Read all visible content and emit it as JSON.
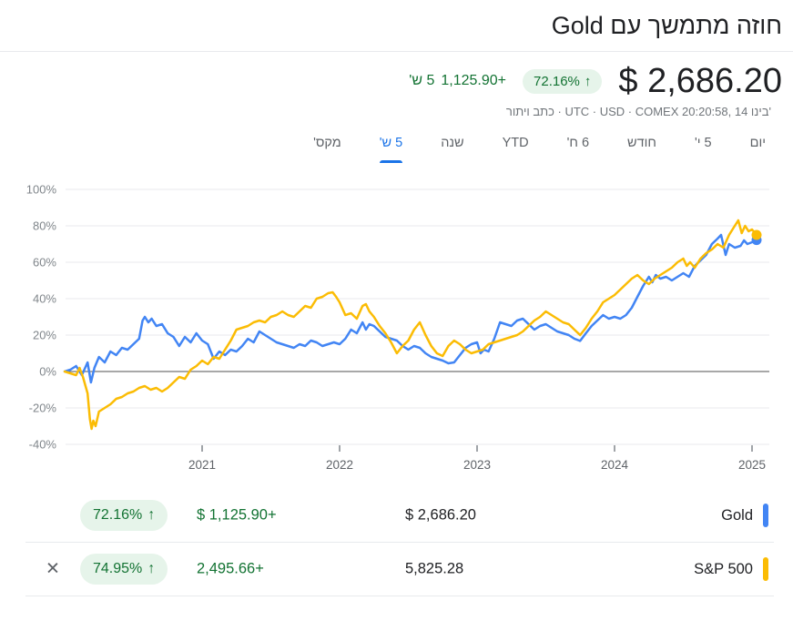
{
  "page": {
    "title": "חוזה מתמשך עם Gold"
  },
  "header": {
    "price": "$ 2,686.20",
    "badge": {
      "pct": "72.16%",
      "arrow": "↑"
    },
    "change": {
      "period": "5 ש'",
      "value": "1,125.90+"
    },
    "info_line": "כתב ויתור · UTC · USD · COMEX 20:20:58, 14 בינו'"
  },
  "tabs": {
    "items": [
      {
        "label": "יום",
        "active": false
      },
      {
        "label": "5 י'",
        "active": false
      },
      {
        "label": "חודש",
        "active": false
      },
      {
        "label": "6 ח'",
        "active": false
      },
      {
        "label": "YTD",
        "active": false
      },
      {
        "label": "שנה",
        "active": false
      },
      {
        "label": "5 ש'",
        "active": true
      },
      {
        "label": "מקס'",
        "active": false
      }
    ]
  },
  "chart_data": {
    "type": "line",
    "title": "Gold continuous contract vs S&P 500, 5 year % change",
    "x_unit": "months since Jan 2020",
    "ylim": [
      -40,
      100
    ],
    "grid": true,
    "y_axis": {
      "ticks": [
        {
          "label": "100%",
          "value": 100
        },
        {
          "label": "80%",
          "value": 80
        },
        {
          "label": "60%",
          "value": 60
        },
        {
          "label": "40%",
          "value": 40
        },
        {
          "label": "20%",
          "value": 20
        },
        {
          "label": "0%",
          "value": 0
        },
        {
          "label": "-20%",
          "value": -20
        },
        {
          "label": "-40%",
          "value": -40
        }
      ]
    },
    "x_axis": {
      "ticks": [
        {
          "label": "2021",
          "month": 12
        },
        {
          "label": "2022",
          "month": 24
        },
        {
          "label": "2023",
          "month": 36
        },
        {
          "label": "2024",
          "month": 48
        },
        {
          "label": "2025",
          "month": 60
        }
      ]
    },
    "series": [
      {
        "id": "gold",
        "name": "Gold",
        "color": "#4285f4",
        "end_value_pct": 72.16,
        "points": [
          [
            0,
            0
          ],
          [
            0.5,
            1
          ],
          [
            1,
            3
          ],
          [
            1.5,
            -2
          ],
          [
            2,
            5
          ],
          [
            2.3,
            -6
          ],
          [
            2.6,
            2
          ],
          [
            3,
            8
          ],
          [
            3.5,
            5
          ],
          [
            4,
            11
          ],
          [
            4.5,
            9
          ],
          [
            5,
            13
          ],
          [
            5.5,
            12
          ],
          [
            6,
            15
          ],
          [
            6.5,
            18
          ],
          [
            6.8,
            28
          ],
          [
            7,
            30
          ],
          [
            7.3,
            27
          ],
          [
            7.6,
            29
          ],
          [
            8,
            25
          ],
          [
            8.5,
            26
          ],
          [
            9,
            21
          ],
          [
            9.5,
            19
          ],
          [
            10,
            14
          ],
          [
            10.5,
            19
          ],
          [
            11,
            16
          ],
          [
            11.5,
            21
          ],
          [
            12,
            17
          ],
          [
            12.5,
            15
          ],
          [
            13,
            7
          ],
          [
            13.5,
            11
          ],
          [
            14,
            9
          ],
          [
            14.5,
            12
          ],
          [
            15,
            11
          ],
          [
            15.5,
            14
          ],
          [
            16,
            18
          ],
          [
            16.5,
            16
          ],
          [
            17,
            22
          ],
          [
            17.5,
            20
          ],
          [
            18,
            18
          ],
          [
            18.5,
            16
          ],
          [
            19,
            15
          ],
          [
            19.5,
            14
          ],
          [
            20,
            13
          ],
          [
            20.5,
            15
          ],
          [
            21,
            14
          ],
          [
            21.5,
            17
          ],
          [
            22,
            16
          ],
          [
            22.5,
            14
          ],
          [
            23,
            15
          ],
          [
            23.5,
            16
          ],
          [
            24,
            15
          ],
          [
            24.5,
            18
          ],
          [
            25,
            23
          ],
          [
            25.5,
            21
          ],
          [
            26,
            27
          ],
          [
            26.3,
            23
          ],
          [
            26.6,
            26
          ],
          [
            27,
            25
          ],
          [
            27.5,
            22
          ],
          [
            28,
            19
          ],
          [
            28.5,
            18
          ],
          [
            29,
            17
          ],
          [
            29.5,
            14
          ],
          [
            30,
            12
          ],
          [
            30.5,
            14
          ],
          [
            31,
            13
          ],
          [
            31.5,
            10
          ],
          [
            32,
            8
          ],
          [
            32.5,
            7
          ],
          [
            33,
            6
          ],
          [
            33.5,
            4.5
          ],
          [
            34,
            5
          ],
          [
            34.5,
            9
          ],
          [
            35,
            13
          ],
          [
            35.5,
            15
          ],
          [
            36,
            16
          ],
          [
            36.3,
            10
          ],
          [
            36.6,
            12
          ],
          [
            37,
            11
          ],
          [
            37.5,
            18
          ],
          [
            38,
            27
          ],
          [
            38.5,
            26
          ],
          [
            39,
            25
          ],
          [
            39.5,
            28
          ],
          [
            40,
            29
          ],
          [
            40.5,
            26
          ],
          [
            41,
            23
          ],
          [
            41.5,
            25
          ],
          [
            42,
            26
          ],
          [
            42.5,
            24
          ],
          [
            43,
            22
          ],
          [
            43.5,
            21
          ],
          [
            44,
            20
          ],
          [
            44.5,
            18
          ],
          [
            45,
            16.8
          ],
          [
            45.5,
            21
          ],
          [
            46,
            25
          ],
          [
            46.5,
            28
          ],
          [
            47,
            31
          ],
          [
            47.5,
            29
          ],
          [
            48,
            30
          ],
          [
            48.5,
            29
          ],
          [
            49,
            31
          ],
          [
            49.5,
            35
          ],
          [
            50,
            41
          ],
          [
            50.5,
            47
          ],
          [
            51,
            52
          ],
          [
            51.3,
            49
          ],
          [
            51.6,
            53
          ],
          [
            52,
            51
          ],
          [
            52.5,
            52
          ],
          [
            53,
            50
          ],
          [
            53.5,
            52
          ],
          [
            54,
            54
          ],
          [
            54.5,
            52
          ],
          [
            55,
            58
          ],
          [
            55.5,
            61
          ],
          [
            56,
            64
          ],
          [
            56.5,
            70
          ],
          [
            57,
            73
          ],
          [
            57.3,
            75
          ],
          [
            57.7,
            64
          ],
          [
            58,
            70
          ],
          [
            58.5,
            68
          ],
          [
            59,
            69
          ],
          [
            59.3,
            72
          ],
          [
            59.6,
            70
          ],
          [
            60,
            71
          ],
          [
            60.4,
            72.2
          ]
        ]
      },
      {
        "id": "sp500",
        "name": "S&P 500",
        "color": "#fbbc04",
        "end_value_pct": 74.95,
        "points": [
          [
            0,
            0
          ],
          [
            0.5,
            -1
          ],
          [
            1,
            -2
          ],
          [
            1.3,
            2
          ],
          [
            1.6,
            -3
          ],
          [
            2,
            -12
          ],
          [
            2.2,
            -26
          ],
          [
            2.35,
            -31.5
          ],
          [
            2.5,
            -27
          ],
          [
            2.7,
            -30
          ],
          [
            3,
            -22
          ],
          [
            3.5,
            -20
          ],
          [
            4,
            -18
          ],
          [
            4.5,
            -15
          ],
          [
            5,
            -14
          ],
          [
            5.5,
            -12
          ],
          [
            6,
            -11
          ],
          [
            6.5,
            -9
          ],
          [
            7,
            -8
          ],
          [
            7.5,
            -10
          ],
          [
            8,
            -9
          ],
          [
            8.5,
            -11
          ],
          [
            9,
            -9
          ],
          [
            9.5,
            -6
          ],
          [
            10,
            -3
          ],
          [
            10.5,
            -4
          ],
          [
            11,
            1
          ],
          [
            11.5,
            3
          ],
          [
            12,
            6
          ],
          [
            12.5,
            4
          ],
          [
            13,
            8
          ],
          [
            13.5,
            7
          ],
          [
            14,
            12
          ],
          [
            14.5,
            17
          ],
          [
            15,
            23
          ],
          [
            15.5,
            24
          ],
          [
            16,
            25
          ],
          [
            16.5,
            27
          ],
          [
            17,
            28
          ],
          [
            17.5,
            27
          ],
          [
            18,
            30
          ],
          [
            18.5,
            31
          ],
          [
            19,
            33
          ],
          [
            19.5,
            31
          ],
          [
            20,
            30
          ],
          [
            20.5,
            33
          ],
          [
            21,
            36
          ],
          [
            21.5,
            35
          ],
          [
            22,
            40
          ],
          [
            22.5,
            41
          ],
          [
            23,
            43
          ],
          [
            23.4,
            43.5
          ],
          [
            23.7,
            41
          ],
          [
            24,
            38
          ],
          [
            24.5,
            31
          ],
          [
            25,
            32
          ],
          [
            25.5,
            29
          ],
          [
            26,
            36
          ],
          [
            26.3,
            37
          ],
          [
            26.6,
            33
          ],
          [
            27,
            30
          ],
          [
            27.5,
            25
          ],
          [
            28,
            21
          ],
          [
            28.5,
            16
          ],
          [
            29,
            10
          ],
          [
            29.5,
            14
          ],
          [
            30,
            17
          ],
          [
            30.5,
            23
          ],
          [
            31,
            27
          ],
          [
            31.5,
            20
          ],
          [
            32,
            14
          ],
          [
            32.5,
            10
          ],
          [
            33,
            8.5
          ],
          [
            33.5,
            14
          ],
          [
            34,
            17
          ],
          [
            34.5,
            15
          ],
          [
            35,
            12
          ],
          [
            35.5,
            10
          ],
          [
            36,
            11
          ],
          [
            36.5,
            12
          ],
          [
            37,
            15
          ],
          [
            37.5,
            16
          ],
          [
            38,
            17
          ],
          [
            38.5,
            18
          ],
          [
            39,
            19
          ],
          [
            39.5,
            20
          ],
          [
            40,
            22
          ],
          [
            40.5,
            25
          ],
          [
            41,
            28
          ],
          [
            41.5,
            30
          ],
          [
            42,
            33
          ],
          [
            42.5,
            31
          ],
          [
            43,
            29
          ],
          [
            43.5,
            27
          ],
          [
            44,
            26
          ],
          [
            44.5,
            23
          ],
          [
            45,
            20
          ],
          [
            45.5,
            24
          ],
          [
            46,
            29
          ],
          [
            46.5,
            33
          ],
          [
            47,
            38
          ],
          [
            47.5,
            40
          ],
          [
            48,
            42
          ],
          [
            48.5,
            45
          ],
          [
            49,
            48
          ],
          [
            49.5,
            51
          ],
          [
            50,
            53
          ],
          [
            50.5,
            50
          ],
          [
            51,
            48
          ],
          [
            51.5,
            51
          ],
          [
            52,
            53
          ],
          [
            52.5,
            55
          ],
          [
            53,
            57
          ],
          [
            53.5,
            60
          ],
          [
            54,
            62
          ],
          [
            54.3,
            58
          ],
          [
            54.6,
            60
          ],
          [
            55,
            57
          ],
          [
            55.5,
            62
          ],
          [
            56,
            65
          ],
          [
            56.5,
            67
          ],
          [
            57,
            70
          ],
          [
            57.5,
            68
          ],
          [
            58,
            75
          ],
          [
            58.4,
            79
          ],
          [
            58.8,
            83
          ],
          [
            59.1,
            76
          ],
          [
            59.4,
            80
          ],
          [
            59.7,
            77
          ],
          [
            60,
            78
          ],
          [
            60.4,
            75
          ]
        ]
      }
    ],
    "legend_position": "bottom"
  },
  "legend": {
    "close_glyph": "✕",
    "rows": [
      {
        "pct": "72.16%",
        "arrow": "↑",
        "change": "$ 1,125.90+",
        "value": "$ 2,686.20",
        "label": "Gold",
        "color": "#4285f4",
        "closable": false
      },
      {
        "pct": "74.95%",
        "arrow": "↑",
        "change": "2,495.66+",
        "value": "5,825.28",
        "label": "S&P 500",
        "color": "#fbbc04",
        "closable": true
      }
    ]
  }
}
